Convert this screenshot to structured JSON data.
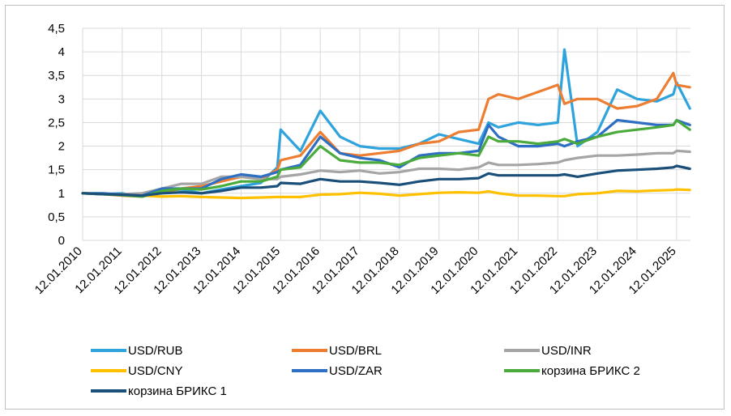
{
  "chart_data": {
    "type": "line",
    "title": "",
    "xlabel": "",
    "ylabel": "",
    "ylim": [
      0,
      4.5
    ],
    "yticks": [
      "0",
      "0,5",
      "1",
      "1,5",
      "2",
      "2,5",
      "3",
      "3,5",
      "4",
      "4,5"
    ],
    "xticks": [
      "12.01.2010",
      "12.01.2011",
      "12.01.2012",
      "12.01.2013",
      "12.01.2014",
      "12.01.2015",
      "12.01.2016",
      "12.01.2017",
      "12.01.2018",
      "12.01.2019",
      "12.01.2020",
      "12.01.2021",
      "12.01.2022",
      "12.01.2023",
      "12.01.2024",
      "12.01.2025"
    ],
    "grid": "vertical",
    "legend_position": "bottom",
    "x": [
      "2010-01",
      "2010-07",
      "2011-01",
      "2011-07",
      "2012-01",
      "2012-07",
      "2013-01",
      "2013-07",
      "2014-01",
      "2014-07",
      "2014-12",
      "2015-01",
      "2015-07",
      "2016-01",
      "2016-07",
      "2017-01",
      "2017-07",
      "2018-01",
      "2018-07",
      "2019-01",
      "2019-07",
      "2020-01",
      "2020-04",
      "2020-07",
      "2021-01",
      "2021-07",
      "2022-01",
      "2022-03",
      "2022-07",
      "2023-01",
      "2023-07",
      "2024-01",
      "2024-07",
      "2024-12",
      "2025-01",
      "2025-05"
    ],
    "series": [
      {
        "name": "USD/RUB",
        "color": "#2ea3dc",
        "values": [
          1.0,
          0.98,
          1.0,
          0.93,
          1.05,
          1.08,
          1.0,
          1.08,
          1.15,
          1.22,
          1.55,
          2.35,
          1.9,
          2.75,
          2.2,
          2.0,
          1.95,
          1.95,
          2.05,
          2.25,
          2.15,
          2.05,
          2.5,
          2.4,
          2.5,
          2.45,
          2.5,
          4.05,
          2.0,
          2.3,
          3.2,
          3.0,
          2.95,
          3.1,
          3.35,
          2.8
        ]
      },
      {
        "name": "USD/BRL",
        "color": "#ed7d31",
        "values": [
          1.0,
          0.98,
          0.95,
          0.93,
          1.02,
          1.1,
          1.15,
          1.25,
          1.35,
          1.3,
          1.5,
          1.7,
          1.8,
          2.3,
          1.85,
          1.8,
          1.85,
          1.9,
          2.05,
          2.1,
          2.3,
          2.35,
          3.0,
          3.1,
          3.0,
          3.15,
          3.3,
          2.9,
          3.0,
          3.0,
          2.8,
          2.85,
          3.0,
          3.55,
          3.3,
          3.25
        ]
      },
      {
        "name": "USD/INR",
        "color": "#a5a5a5",
        "values": [
          1.0,
          0.98,
          0.98,
          1.0,
          1.1,
          1.2,
          1.2,
          1.35,
          1.35,
          1.3,
          1.3,
          1.35,
          1.4,
          1.48,
          1.45,
          1.48,
          1.42,
          1.45,
          1.52,
          1.52,
          1.5,
          1.55,
          1.65,
          1.6,
          1.6,
          1.62,
          1.65,
          1.7,
          1.75,
          1.8,
          1.8,
          1.82,
          1.85,
          1.85,
          1.9,
          1.88
        ]
      },
      {
        "name": "USD/CNY",
        "color": "#ffc000",
        "values": [
          1.0,
          0.99,
          0.97,
          0.95,
          0.93,
          0.94,
          0.92,
          0.91,
          0.9,
          0.91,
          0.92,
          0.92,
          0.92,
          0.97,
          0.98,
          1.01,
          0.99,
          0.95,
          0.98,
          1.01,
          1.02,
          1.01,
          1.04,
          1.0,
          0.95,
          0.95,
          0.94,
          0.94,
          0.98,
          1.0,
          1.05,
          1.04,
          1.06,
          1.07,
          1.08,
          1.07
        ]
      },
      {
        "name": "USD/ZAR",
        "color": "#2e6fc4",
        "values": [
          1.0,
          1.0,
          0.97,
          0.95,
          1.1,
          1.1,
          1.1,
          1.3,
          1.4,
          1.35,
          1.45,
          1.5,
          1.6,
          2.2,
          1.85,
          1.75,
          1.7,
          1.55,
          1.8,
          1.85,
          1.85,
          1.9,
          2.45,
          2.2,
          2.0,
          2.0,
          2.05,
          2.0,
          2.1,
          2.2,
          2.55,
          2.5,
          2.45,
          2.45,
          2.55,
          2.45
        ]
      },
      {
        "name": "корзина БРИКС 2",
        "color": "#4aab3c",
        "values": [
          1.0,
          0.98,
          0.96,
          0.93,
          1.05,
          1.1,
          1.08,
          1.15,
          1.25,
          1.25,
          1.35,
          1.5,
          1.55,
          2.0,
          1.7,
          1.65,
          1.65,
          1.6,
          1.75,
          1.8,
          1.85,
          1.8,
          2.2,
          2.1,
          2.1,
          2.05,
          2.1,
          2.15,
          2.05,
          2.2,
          2.3,
          2.35,
          2.4,
          2.45,
          2.55,
          2.35
        ]
      },
      {
        "name": "корзина БРИКС 1",
        "color": "#1a4f7a",
        "values": [
          1.0,
          0.98,
          0.97,
          0.95,
          1.0,
          1.02,
          1.0,
          1.05,
          1.12,
          1.12,
          1.15,
          1.22,
          1.2,
          1.3,
          1.25,
          1.25,
          1.22,
          1.18,
          1.25,
          1.3,
          1.3,
          1.32,
          1.42,
          1.38,
          1.38,
          1.38,
          1.38,
          1.4,
          1.35,
          1.42,
          1.48,
          1.5,
          1.52,
          1.55,
          1.58,
          1.52
        ]
      }
    ]
  }
}
